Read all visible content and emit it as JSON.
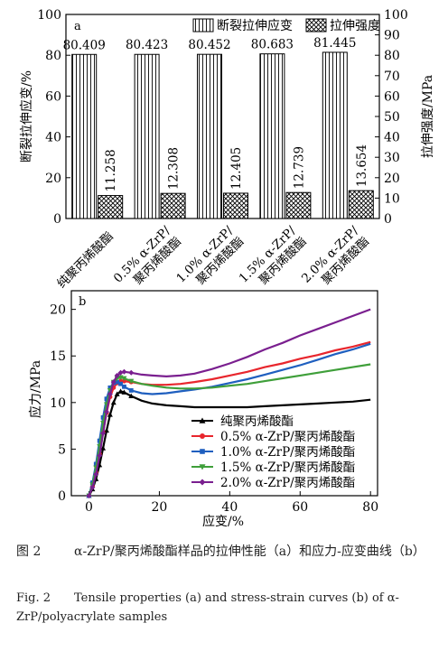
{
  "chart_data": [
    {
      "panel": "a",
      "type": "bar",
      "categories": [
        "纯聚丙烯酸酯",
        "0.5% α-ZrP/聚丙烯酸酯",
        "1.0% α-ZrP/聚丙烯酸酯",
        "1.5% α-ZrP/聚丙烯酸酯",
        "2.0% α-ZrP/聚丙烯酸酯"
      ],
      "category_lines": [
        [
          "纯聚丙烯酸酯"
        ],
        [
          "0.5% α-ZrP/",
          "聚丙烯酸酯"
        ],
        [
          "1.0% α-ZrP/",
          "聚丙烯酸酯"
        ],
        [
          "1.5% α-ZrP/",
          "聚丙烯酸酯"
        ],
        [
          "2.0% α-ZrP/",
          "聚丙烯酸酯"
        ]
      ],
      "series": [
        {
          "name": "断裂拉伸应变",
          "axis": "left",
          "values": [
            80.409,
            80.423,
            80.452,
            80.683,
            81.445
          ],
          "labels": [
            "80.409",
            "80.423",
            "80.452",
            "80.683",
            "81.445"
          ]
        },
        {
          "name": "拉伸强度",
          "axis": "right",
          "values": [
            11.258,
            12.308,
            12.405,
            12.739,
            13.654
          ],
          "labels": [
            "11.258",
            "12.308",
            "12.405",
            "12.739",
            "13.654"
          ]
        }
      ],
      "ylabel": "断裂拉伸应变/%",
      "ylabel_right": "拉伸强度/MPa",
      "ylim": [
        0,
        100
      ],
      "yticks": [
        0,
        20,
        40,
        60,
        80,
        100
      ],
      "ylim_right": [
        0,
        100
      ],
      "yticks_right": [
        0,
        10,
        20,
        30,
        40,
        50,
        60,
        70,
        80,
        90,
        100
      ],
      "legend": "top-right"
    },
    {
      "panel": "b",
      "type": "line",
      "xlabel": "应变/%",
      "ylabel": "应力/MPa",
      "xlim": [
        -5,
        82
      ],
      "ylim": [
        0,
        22
      ],
      "xticks": [
        0,
        20,
        40,
        60,
        80
      ],
      "yticks": [
        0,
        5,
        10,
        15,
        20
      ],
      "legend": "bottom-right",
      "series": [
        {
          "name": "纯聚丙烯酸酯",
          "color": "#000000",
          "marker": "triangle",
          "x": [
            0,
            1,
            2,
            3,
            4,
            5,
            6,
            7,
            8,
            9,
            10,
            12,
            15,
            18,
            22,
            26,
            30,
            35,
            40,
            45,
            50,
            55,
            60,
            65,
            70,
            75,
            80
          ],
          "y": [
            0,
            0.7,
            1.8,
            3.3,
            5.1,
            7.0,
            8.7,
            10.0,
            10.9,
            11.2,
            11.1,
            10.7,
            10.2,
            9.9,
            9.7,
            9.6,
            9.5,
            9.5,
            9.5,
            9.5,
            9.6,
            9.7,
            9.8,
            9.9,
            10.0,
            10.1,
            10.3
          ]
        },
        {
          "name": "0.5% α-ZrP/聚丙烯酸酯",
          "color": "#e8262d",
          "marker": "circle",
          "x": [
            0,
            1,
            2,
            3,
            4,
            5,
            6,
            7,
            8,
            9,
            10,
            12,
            15,
            18,
            22,
            26,
            30,
            35,
            40,
            45,
            50,
            55,
            60,
            65,
            70,
            75,
            80
          ],
          "y": [
            0,
            1.0,
            2.5,
            4.5,
            6.8,
            8.9,
            10.6,
            11.6,
            12.1,
            12.3,
            12.3,
            12.2,
            12.0,
            11.9,
            11.9,
            12.0,
            12.2,
            12.5,
            12.9,
            13.3,
            13.8,
            14.2,
            14.7,
            15.1,
            15.6,
            16.0,
            16.5
          ]
        },
        {
          "name": "1.0% α-ZrP/聚丙烯酸酯",
          "color": "#1f5fbf",
          "marker": "square",
          "x": [
            0,
            1,
            2,
            3,
            4,
            5,
            6,
            7,
            8,
            9,
            10,
            12,
            15,
            18,
            22,
            26,
            30,
            35,
            40,
            45,
            50,
            55,
            60,
            65,
            70,
            75,
            80
          ],
          "y": [
            0,
            1.4,
            3.4,
            5.9,
            8.4,
            10.4,
            11.6,
            12.1,
            12.2,
            12.0,
            11.7,
            11.3,
            11.0,
            10.9,
            11.0,
            11.2,
            11.4,
            11.7,
            12.1,
            12.5,
            13.0,
            13.5,
            14.0,
            14.6,
            15.2,
            15.7,
            16.3
          ]
        },
        {
          "name": "1.5% α-ZrP/聚丙烯酸酯",
          "color": "#3f9f3a",
          "marker": "triangle-down",
          "x": [
            0,
            1,
            2,
            3,
            4,
            5,
            6,
            7,
            8,
            9,
            10,
            12,
            15,
            18,
            22,
            26,
            30,
            35,
            40,
            45,
            50,
            55,
            60,
            65,
            70,
            75,
            80
          ],
          "y": [
            0,
            1.2,
            3.0,
            5.3,
            7.8,
            9.8,
            11.3,
            12.2,
            12.6,
            12.7,
            12.6,
            12.3,
            12.0,
            11.8,
            11.6,
            11.5,
            11.5,
            11.6,
            11.8,
            12.0,
            12.3,
            12.6,
            12.9,
            13.2,
            13.5,
            13.8,
            14.1
          ]
        },
        {
          "name": "2.0% α-ZrP/聚丙烯酸酯",
          "color": "#7a1f8f",
          "marker": "diamond",
          "x": [
            0,
            1,
            2,
            3,
            4,
            5,
            6,
            7,
            8,
            9,
            10,
            12,
            15,
            18,
            22,
            26,
            30,
            35,
            40,
            45,
            50,
            55,
            60,
            65,
            70,
            75,
            80
          ],
          "y": [
            0,
            0.9,
            2.3,
            4.3,
            6.7,
            9.0,
            10.9,
            12.2,
            12.9,
            13.2,
            13.3,
            13.2,
            13.0,
            12.9,
            12.8,
            12.9,
            13.1,
            13.6,
            14.2,
            14.9,
            15.7,
            16.4,
            17.2,
            17.9,
            18.6,
            19.3,
            20.0
          ]
        }
      ]
    }
  ],
  "caption": {
    "zh_label": "图 2",
    "zh_text": "α-ZrP/聚丙烯酸酯样品的拉伸性能（a）和应力-应变曲线（b）",
    "en_label": "Fig. 2",
    "en_text": "Tensile properties (a) and stress-strain curves (b) of α-ZrP/polyacrylate samples"
  }
}
